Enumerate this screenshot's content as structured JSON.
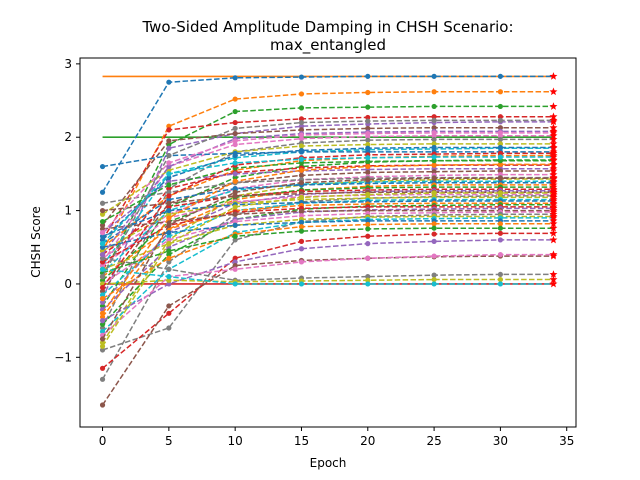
{
  "chart_data": {
    "type": "line",
    "title": "Two-Sided Amplitude Damping in CHSH Scenario:",
    "subtitle": "max_entangled",
    "xlabel": "Epoch",
    "ylabel": "CHSH Score",
    "xlim": [
      -1.7,
      35.7
    ],
    "ylim": [
      -1.95,
      3.08
    ],
    "xticks": [
      0,
      5,
      10,
      15,
      20,
      25,
      30,
      35
    ],
    "yticks": [
      -1,
      0,
      1,
      2,
      3
    ],
    "x": [
      0,
      5,
      10,
      15,
      20,
      25,
      30,
      34
    ],
    "reference_lines": [
      {
        "value": 2.828,
        "color": "#ff7f0e"
      },
      {
        "value": 2.0,
        "color": "#2ca02c"
      },
      {
        "value": 0.0,
        "color": "#d62728"
      }
    ],
    "colors": [
      "#1f77b4",
      "#ff7f0e",
      "#2ca02c",
      "#d62728",
      "#9467bd",
      "#8c564b",
      "#e377c2",
      "#7f7f7f",
      "#bcbd22",
      "#17becf"
    ],
    "end_marker_color": "#ff0000",
    "series": [
      {
        "values": [
          1.25,
          2.75,
          2.81,
          2.82,
          2.83,
          2.83,
          2.83,
          2.83
        ]
      },
      {
        "values": [
          0.45,
          2.15,
          2.52,
          2.59,
          2.61,
          2.62,
          2.62,
          2.62
        ]
      },
      {
        "values": [
          0.1,
          1.9,
          2.35,
          2.4,
          2.41,
          2.42,
          2.42,
          2.42
        ]
      },
      {
        "values": [
          0.6,
          2.1,
          2.2,
          2.25,
          2.27,
          2.28,
          2.28,
          2.28
        ]
      },
      {
        "values": [
          -0.2,
          1.85,
          2.05,
          2.15,
          2.18,
          2.2,
          2.21,
          2.21
        ]
      },
      {
        "values": [
          0.8,
          1.95,
          2.05,
          2.1,
          2.12,
          2.13,
          2.13,
          2.13
        ]
      },
      {
        "values": [
          0.3,
          1.6,
          1.9,
          1.98,
          2.01,
          2.02,
          2.02,
          2.02
        ]
      },
      {
        "values": [
          -0.6,
          1.3,
          1.8,
          1.92,
          1.96,
          1.97,
          1.97,
          1.97
        ]
      },
      {
        "values": [
          0.95,
          1.55,
          1.8,
          1.88,
          1.9,
          1.91,
          1.91,
          1.91
        ]
      },
      {
        "values": [
          0.25,
          1.5,
          1.72,
          1.8,
          1.83,
          1.84,
          1.85,
          1.85
        ]
      },
      {
        "values": [
          1.6,
          1.75,
          1.78,
          1.8,
          1.8,
          1.8,
          1.8,
          1.8
        ]
      },
      {
        "values": [
          0.5,
          1.2,
          1.55,
          1.68,
          1.72,
          1.74,
          1.75,
          1.75
        ]
      },
      {
        "values": [
          -0.3,
          1.05,
          1.45,
          1.6,
          1.66,
          1.68,
          1.69,
          1.69
        ]
      },
      {
        "values": [
          0.2,
          1.3,
          1.52,
          1.58,
          1.61,
          1.62,
          1.62,
          1.62
        ]
      },
      {
        "values": [
          0.7,
          1.4,
          1.5,
          1.54,
          1.56,
          1.57,
          1.57,
          1.57
        ]
      },
      {
        "values": [
          -0.1,
          1.1,
          1.38,
          1.48,
          1.52,
          1.53,
          1.54,
          1.54
        ]
      },
      {
        "values": [
          0.35,
          0.95,
          1.3,
          1.42,
          1.46,
          1.48,
          1.49,
          1.49
        ]
      },
      {
        "values": [
          1.1,
          1.25,
          1.38,
          1.42,
          1.44,
          1.45,
          1.45,
          1.45
        ]
      },
      {
        "values": [
          -0.8,
          0.6,
          1.2,
          1.35,
          1.4,
          1.42,
          1.43,
          1.43
        ]
      },
      {
        "values": [
          0.15,
          1.0,
          1.28,
          1.36,
          1.39,
          1.4,
          1.4,
          1.4
        ]
      },
      {
        "values": [
          0.55,
          1.15,
          1.3,
          1.35,
          1.37,
          1.38,
          1.38,
          1.38
        ]
      },
      {
        "values": [
          -0.45,
          0.75,
          1.15,
          1.28,
          1.33,
          1.35,
          1.35,
          1.35
        ]
      },
      {
        "values": [
          0.05,
          0.85,
          1.18,
          1.28,
          1.31,
          1.32,
          1.32,
          1.32
        ]
      },
      {
        "values": [
          0.4,
          1.05,
          1.2,
          1.26,
          1.28,
          1.29,
          1.29,
          1.29
        ]
      },
      {
        "values": [
          -0.25,
          0.7,
          1.1,
          1.22,
          1.26,
          1.27,
          1.27,
          1.27
        ]
      },
      {
        "values": [
          1.0,
          1.1,
          1.2,
          1.23,
          1.25,
          1.25,
          1.25,
          1.25
        ]
      },
      {
        "values": [
          0.25,
          0.9,
          1.12,
          1.19,
          1.21,
          1.22,
          1.22,
          1.22
        ]
      },
      {
        "values": [
          -1.3,
          0.3,
          0.95,
          1.12,
          1.17,
          1.19,
          1.2,
          1.2
        ]
      },
      {
        "values": [
          0.45,
          0.95,
          1.1,
          1.15,
          1.17,
          1.18,
          1.18,
          1.18
        ]
      },
      {
        "values": [
          -0.15,
          0.65,
          1.0,
          1.1,
          1.14,
          1.15,
          1.15,
          1.15
        ]
      },
      {
        "values": [
          0.65,
          1.0,
          1.08,
          1.11,
          1.12,
          1.13,
          1.13,
          1.13
        ]
      },
      {
        "values": [
          0.1,
          0.75,
          1.0,
          1.07,
          1.09,
          1.1,
          1.1,
          1.1
        ]
      },
      {
        "values": [
          -0.55,
          0.4,
          0.88,
          1.02,
          1.06,
          1.07,
          1.08,
          1.08
        ]
      },
      {
        "values": [
          0.3,
          0.8,
          0.98,
          1.03,
          1.05,
          1.05,
          1.05,
          1.05
        ]
      },
      {
        "values": [
          -0.35,
          0.5,
          0.88,
          0.98,
          1.01,
          1.02,
          1.03,
          1.03
        ]
      },
      {
        "values": [
          0.75,
          0.85,
          0.95,
          0.99,
          1.0,
          1.0,
          1.0,
          1.0
        ]
      },
      {
        "values": [
          0.0,
          0.6,
          0.85,
          0.93,
          0.96,
          0.97,
          0.98,
          0.98
        ]
      },
      {
        "values": [
          -0.9,
          -0.6,
          0.6,
          0.85,
          0.92,
          0.94,
          0.95,
          0.95
        ]
      },
      {
        "values": [
          0.2,
          0.55,
          0.8,
          0.88,
          0.91,
          0.92,
          0.92,
          0.92
        ]
      },
      {
        "values": [
          -0.65,
          0.2,
          0.7,
          0.84,
          0.88,
          0.89,
          0.9,
          0.9
        ]
      },
      {
        "values": [
          0.5,
          0.7,
          0.8,
          0.84,
          0.86,
          0.86,
          0.86,
          0.86
        ]
      },
      {
        "values": [
          -0.2,
          0.35,
          0.68,
          0.78,
          0.81,
          0.82,
          0.82,
          0.82
        ]
      },
      {
        "values": [
          0.15,
          0.45,
          0.65,
          0.72,
          0.75,
          0.76,
          0.76,
          0.76
        ]
      },
      {
        "values": [
          -1.15,
          -0.4,
          0.35,
          0.58,
          0.65,
          0.68,
          0.69,
          0.69
        ]
      },
      {
        "values": [
          -0.5,
          0.0,
          0.3,
          0.48,
          0.55,
          0.58,
          0.6,
          0.6
        ]
      },
      {
        "values": [
          -1.65,
          -0.3,
          0.25,
          0.32,
          0.35,
          0.37,
          0.38,
          0.38
        ]
      },
      {
        "values": [
          -0.7,
          0.1,
          0.2,
          0.3,
          0.35,
          0.38,
          0.4,
          0.4
        ]
      },
      {
        "values": [
          0.35,
          0.2,
          0.05,
          0.08,
          0.1,
          0.12,
          0.13,
          0.13
        ]
      },
      {
        "values": [
          0.0,
          0.05,
          0.03,
          0.04,
          0.05,
          0.06,
          0.06,
          0.06
        ]
      },
      {
        "values": [
          0.2,
          0.1,
          0.0,
          0.0,
          0.0,
          0.0,
          0.0,
          0.0
        ]
      },
      {
        "values": [
          0.6,
          1.45,
          1.75,
          1.82,
          1.85,
          1.86,
          1.86,
          1.86
        ]
      },
      {
        "values": [
          -0.4,
          0.9,
          1.4,
          1.55,
          1.6,
          1.62,
          1.63,
          1.63
        ]
      },
      {
        "values": [
          0.85,
          1.35,
          1.58,
          1.65,
          1.67,
          1.68,
          1.68,
          1.68
        ]
      },
      {
        "values": [
          -0.05,
          1.2,
          1.62,
          1.72,
          1.76,
          1.77,
          1.78,
          1.78
        ]
      },
      {
        "values": [
          0.4,
          1.6,
          1.98,
          2.05,
          2.07,
          2.08,
          2.08,
          2.08
        ]
      },
      {
        "values": [
          -0.75,
          0.8,
          1.25,
          1.38,
          1.42,
          1.44,
          1.44,
          1.44
        ]
      },
      {
        "values": [
          0.7,
          1.65,
          1.95,
          2.03,
          2.05,
          2.06,
          2.06,
          2.06
        ]
      },
      {
        "values": [
          0.1,
          1.75,
          2.12,
          2.2,
          2.22,
          2.23,
          2.23,
          2.23
        ]
      },
      {
        "values": [
          -0.85,
          0.55,
          1.05,
          1.18,
          1.22,
          1.24,
          1.24,
          1.24
        ]
      },
      {
        "values": [
          0.55,
          1.5,
          1.65,
          1.7,
          1.72,
          1.73,
          1.73,
          1.73
        ]
      }
    ]
  }
}
